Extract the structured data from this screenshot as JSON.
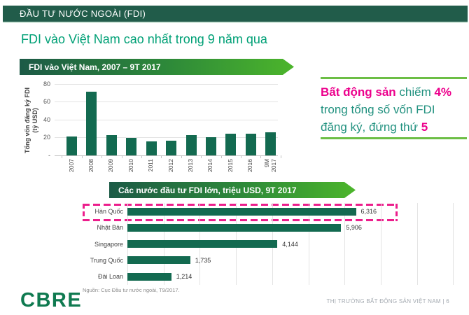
{
  "header": {
    "title": "ĐẦU TƯ NƯỚC NGOÀI (FDI)"
  },
  "page_title": "FDI vào Việt Nam cao nhất trong 9 năm qua",
  "insight": {
    "seg_bold1": "Bất động sản",
    "seg_mid1": " chiếm ",
    "seg_bold2": "4%",
    "line2": "trong tổng số vốn FDI",
    "seg_mid2": "đăng ký, đứng thứ ",
    "seg_bold3": "5"
  },
  "colors": {
    "header_green": "#215C4A",
    "bar_green": "#136A50",
    "banner_gradient_start": "#1C5A46",
    "banner_gradient_end": "#4CB52B",
    "accent_green": "#6CBE45",
    "teal_text": "#21917F",
    "title_green": "#00A076",
    "pink": "#EC008C",
    "cbre_green": "#0F7A50"
  },
  "chart_data": [
    {
      "type": "bar",
      "title": "FDI vào Việt Nam, 2007 – 9T 2017",
      "categories": [
        "2007",
        "2008",
        "2009",
        "2010",
        "2011",
        "2012",
        "2013",
        "2014",
        "2015",
        "2016",
        "9M\n2017"
      ],
      "values": [
        21.3,
        71.7,
        23.1,
        19.9,
        15.6,
        16.3,
        22.4,
        20.2,
        24.1,
        24.4,
        25.5
      ],
      "ylabel": "Tổng vốn đăng ký FDI\n(tỷ USD)",
      "xlabel": "",
      "ylim": [
        0,
        80
      ],
      "yticks": [
        {
          "v": 80,
          "label": "80"
        },
        {
          "v": 60,
          "label": "60"
        },
        {
          "v": 40,
          "label": "40"
        },
        {
          "v": 20,
          "label": "20"
        },
        {
          "v": 0,
          "label": "-"
        }
      ],
      "grid": true,
      "legend": "none"
    },
    {
      "type": "bar-horizontal",
      "title": "Các nước đầu tư FDI lớn, triệu USD, 9T 2017",
      "categories": [
        "Hàn Quốc",
        "Nhật Bản",
        "Singapore",
        "Trung Quốc",
        "Đài Loan"
      ],
      "values": [
        6316,
        5906,
        4144,
        1735,
        1214
      ],
      "value_labels": [
        "6,316",
        "5,906",
        "4,144",
        "1,735",
        "1,214"
      ],
      "xlim": [
        0,
        9000
      ],
      "gridline_step": 1000,
      "grid": true,
      "legend": "none",
      "highlight": {
        "category": "Hàn Quốc",
        "style": "dashed-pink-box"
      }
    }
  ],
  "footer": {
    "logo": "CBRE",
    "source": "Nguồn: Cục Đầu tư nước ngoài, T9/2017.",
    "page_label": "THỊ TRƯỜNG BẤT ĐỘNG SẢN VIỆT NAM | 6"
  }
}
